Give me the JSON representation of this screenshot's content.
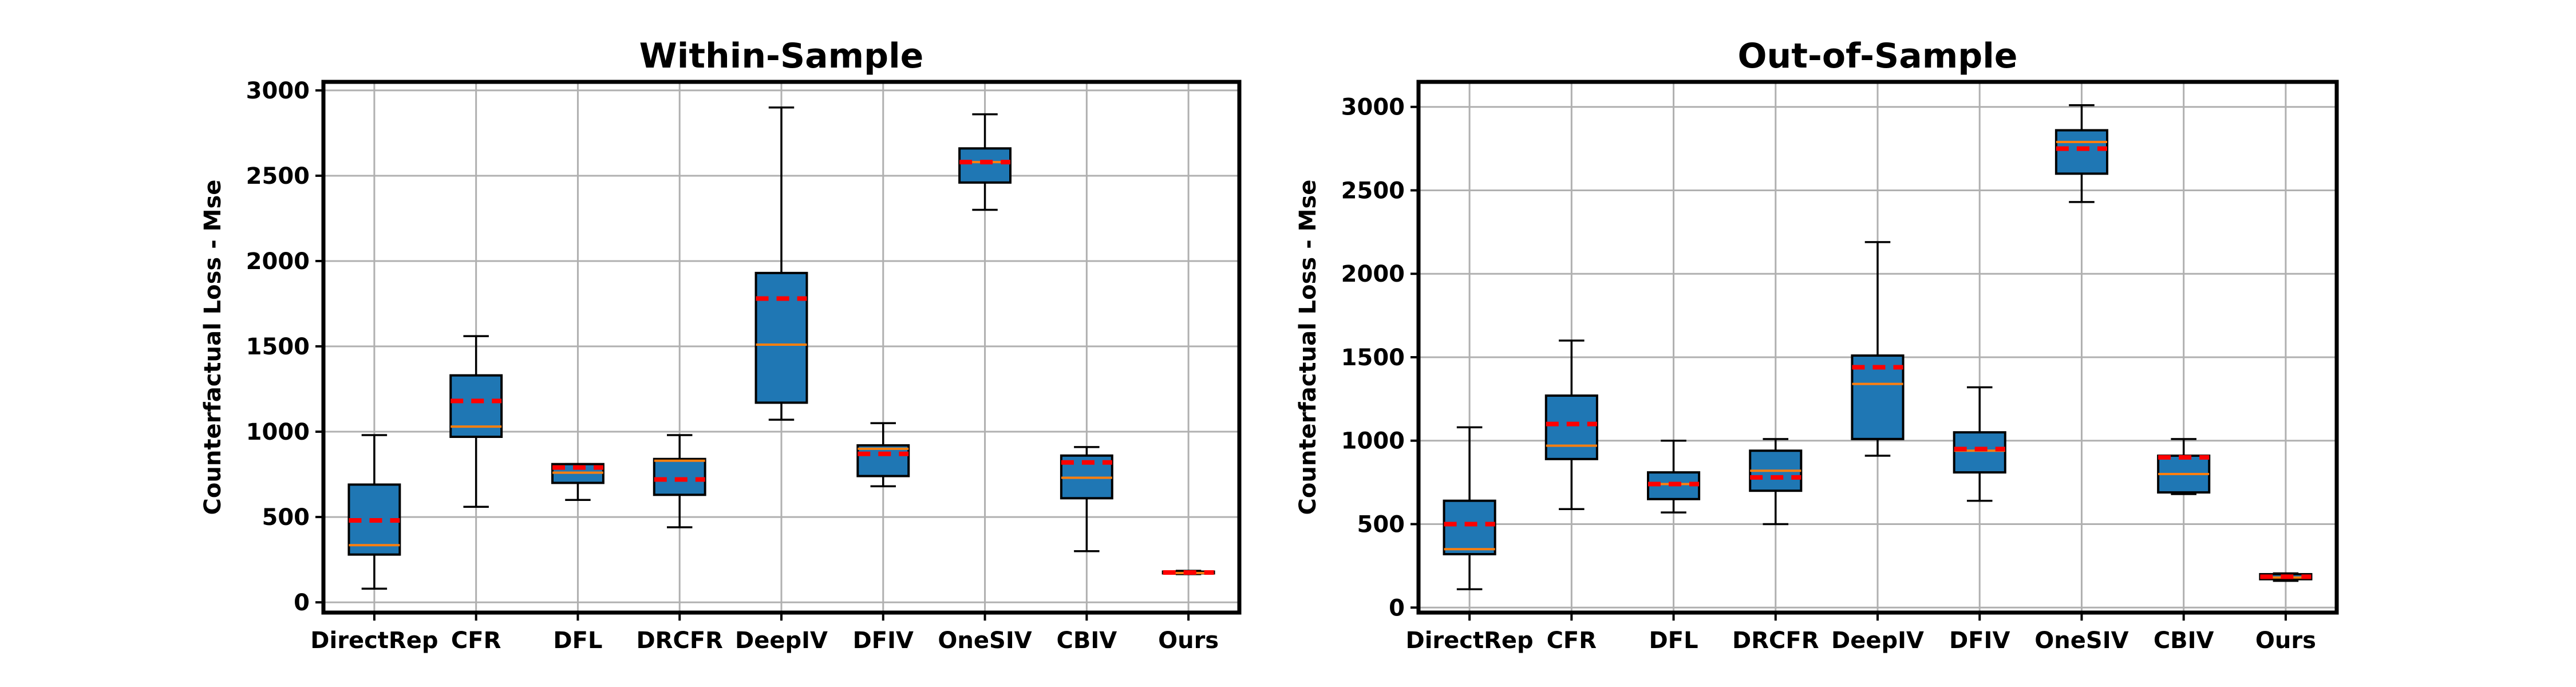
{
  "chart_data": [
    {
      "type": "box",
      "title": "Within-Sample",
      "xlabel": "",
      "ylabel": "Counterfactual Loss - Mse",
      "ylim": [
        -60,
        3050
      ],
      "yticks": [
        0,
        500,
        1000,
        1500,
        2000,
        2500,
        3000
      ],
      "grid": true,
      "categories": [
        "DirectRep",
        "CFR",
        "DFL",
        "DRCFR",
        "DeepIV",
        "DFIV",
        "OneSIV",
        "CBIV",
        "Ours"
      ],
      "boxes": [
        {
          "whisker_low": 80,
          "q1": 280,
          "median": 335,
          "q3": 690,
          "whisker_high": 980,
          "mean": 480
        },
        {
          "whisker_low": 560,
          "q1": 970,
          "median": 1030,
          "q3": 1330,
          "whisker_high": 1560,
          "mean": 1180
        },
        {
          "whisker_low": 600,
          "q1": 700,
          "median": 760,
          "q3": 810,
          "whisker_high": 810,
          "mean": 790
        },
        {
          "whisker_low": 440,
          "q1": 630,
          "median": 830,
          "q3": 840,
          "whisker_high": 980,
          "mean": 720
        },
        {
          "whisker_low": 1070,
          "q1": 1170,
          "median": 1510,
          "q3": 1930,
          "whisker_high": 2900,
          "mean": 1780
        },
        {
          "whisker_low": 680,
          "q1": 740,
          "median": 900,
          "q3": 920,
          "whisker_high": 1050,
          "mean": 870
        },
        {
          "whisker_low": 2300,
          "q1": 2460,
          "median": 2580,
          "q3": 2660,
          "whisker_high": 2860,
          "mean": 2580
        },
        {
          "whisker_low": 300,
          "q1": 610,
          "median": 730,
          "q3": 860,
          "whisker_high": 910,
          "mean": 820
        },
        {
          "whisker_low": 165,
          "q1": 170,
          "median": 172,
          "q3": 180,
          "whisker_high": 185,
          "mean": 175
        }
      ]
    },
    {
      "type": "box",
      "title": "Out-of-Sample",
      "xlabel": "",
      "ylabel": "Counterfactual Loss - Mse",
      "ylim": [
        -30,
        3150
      ],
      "yticks": [
        0,
        500,
        1000,
        1500,
        2000,
        2500,
        3000
      ],
      "grid": true,
      "categories": [
        "DirectRep",
        "CFR",
        "DFL",
        "DRCFR",
        "DeepIV",
        "DFIV",
        "OneSIV",
        "CBIV",
        "Ours"
      ],
      "boxes": [
        {
          "whisker_low": 110,
          "q1": 320,
          "median": 350,
          "q3": 640,
          "whisker_high": 1080,
          "mean": 500
        },
        {
          "whisker_low": 590,
          "q1": 890,
          "median": 970,
          "q3": 1270,
          "whisker_high": 1600,
          "mean": 1100
        },
        {
          "whisker_low": 570,
          "q1": 650,
          "median": 740,
          "q3": 810,
          "whisker_high": 1000,
          "mean": 740
        },
        {
          "whisker_low": 500,
          "q1": 700,
          "median": 820,
          "q3": 940,
          "whisker_high": 1010,
          "mean": 780
        },
        {
          "whisker_low": 910,
          "q1": 1010,
          "median": 1340,
          "q3": 1510,
          "whisker_high": 2190,
          "mean": 1440
        },
        {
          "whisker_low": 640,
          "q1": 810,
          "median": 940,
          "q3": 1050,
          "whisker_high": 1320,
          "mean": 950
        },
        {
          "whisker_low": 2430,
          "q1": 2600,
          "median": 2790,
          "q3": 2860,
          "whisker_high": 3010,
          "mean": 2750
        },
        {
          "whisker_low": 680,
          "q1": 690,
          "median": 800,
          "q3": 910,
          "whisker_high": 1010,
          "mean": 900
        },
        {
          "whisker_low": 160,
          "q1": 170,
          "median": 180,
          "q3": 200,
          "whisker_high": 205,
          "mean": 185
        }
      ]
    }
  ],
  "colors": {
    "box_fill": "#1f77b4",
    "median": "#ff7f0e",
    "mean": "#ff0000",
    "grid": "#b0b0b0",
    "axis": "#000000"
  }
}
